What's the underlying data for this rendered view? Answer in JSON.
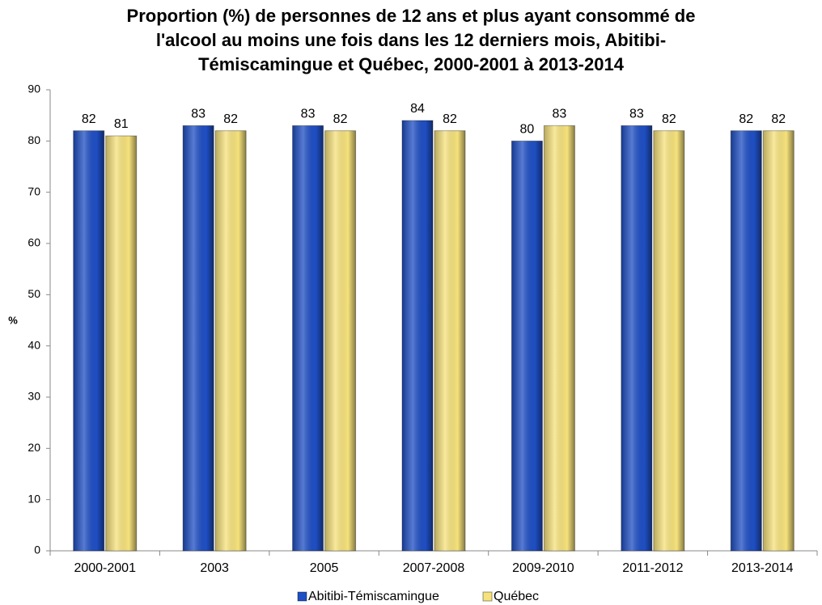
{
  "chart_data": {
    "type": "bar",
    "title": [
      "Proportion (%) de personnes de 12 ans et plus ayant consommé de",
      "l'alcool au moins une fois dans les 12 derniers mois, Abitibi-",
      "Témiscamingue et Québec, 2000-2001 à 2013-2014"
    ],
    "y_label": "%",
    "categories": [
      "2000-2001",
      "2003",
      "2005",
      "2007-2008",
      "2009-2010",
      "2011-2012",
      "2013-2014"
    ],
    "series": [
      {
        "name": "Abitibi-Témiscamingue",
        "color": "#1f4fc4",
        "values": [
          82,
          83,
          83,
          84,
          80,
          83,
          82
        ]
      },
      {
        "name": "Québec",
        "color": "#f6e27c",
        "values": [
          81,
          82,
          82,
          82,
          83,
          82,
          82
        ]
      }
    ],
    "ylim": [
      0,
      90
    ],
    "yticks": [
      0,
      10,
      20,
      30,
      40,
      50,
      60,
      70,
      80,
      90
    ],
    "legend": "bottom",
    "grid": false
  }
}
